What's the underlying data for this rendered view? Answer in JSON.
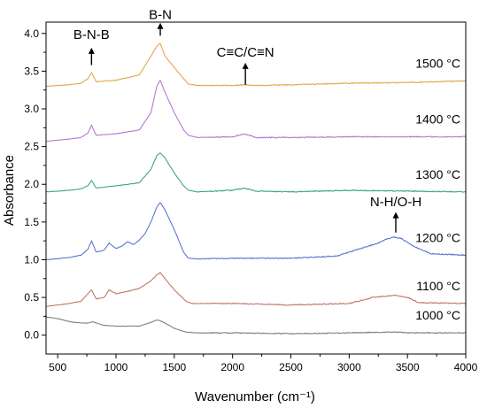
{
  "chart_data": {
    "type": "line",
    "title": "",
    "xlabel": "Wavenumber (cm⁻¹)",
    "ylabel": "Absorbance",
    "xlim": [
      400,
      4000
    ],
    "ylim": [
      -0.25,
      4.15
    ],
    "xticks": [
      500,
      1000,
      1500,
      2000,
      2500,
      3000,
      3500,
      4000
    ],
    "yticks": [
      0.0,
      0.5,
      1.0,
      1.5,
      2.0,
      2.5,
      3.0,
      3.5,
      4.0
    ],
    "grid": false,
    "legend": "none",
    "series": [
      {
        "name": "1000 °C",
        "color": "#808080",
        "x": [
          400,
          500,
          600,
          700,
          760,
          800,
          850,
          900,
          1000,
          1100,
          1200,
          1300,
          1350,
          1380,
          1420,
          1500,
          1600,
          1700,
          2000,
          2500,
          3000,
          3300,
          3400,
          3500,
          4000
        ],
        "y": [
          0.24,
          0.22,
          0.18,
          0.16,
          0.16,
          0.18,
          0.15,
          0.13,
          0.12,
          0.12,
          0.12,
          0.17,
          0.2,
          0.19,
          0.16,
          0.09,
          0.04,
          0.03,
          0.03,
          0.02,
          0.03,
          0.04,
          0.04,
          0.03,
          0.03
        ]
      },
      {
        "name": "1100 °C",
        "color": "#c0776a",
        "x": [
          400,
          600,
          700,
          760,
          790,
          830,
          900,
          940,
          1000,
          1100,
          1200,
          1300,
          1350,
          1380,
          1420,
          1500,
          1600,
          1650,
          2000,
          2500,
          3000,
          3200,
          3400,
          3500,
          3600,
          4000
        ],
        "y": [
          0.38,
          0.42,
          0.45,
          0.55,
          0.6,
          0.48,
          0.5,
          0.6,
          0.55,
          0.58,
          0.62,
          0.72,
          0.8,
          0.83,
          0.75,
          0.6,
          0.45,
          0.42,
          0.42,
          0.4,
          0.42,
          0.5,
          0.53,
          0.5,
          0.43,
          0.42
        ]
      },
      {
        "name": "1200 °C",
        "color": "#5a78d0",
        "x": [
          400,
          600,
          700,
          760,
          790,
          830,
          900,
          940,
          1000,
          1050,
          1100,
          1150,
          1200,
          1250,
          1300,
          1350,
          1380,
          1420,
          1500,
          1580,
          1620,
          1700,
          2000,
          2500,
          2900,
          3100,
          3250,
          3300,
          3380,
          3450,
          3550,
          3700,
          4000
        ],
        "y": [
          1.0,
          1.03,
          1.06,
          1.14,
          1.25,
          1.1,
          1.13,
          1.22,
          1.15,
          1.18,
          1.24,
          1.2,
          1.26,
          1.35,
          1.5,
          1.7,
          1.76,
          1.66,
          1.4,
          1.1,
          1.02,
          1.01,
          1.02,
          1.02,
          1.05,
          1.15,
          1.22,
          1.26,
          1.3,
          1.28,
          1.18,
          1.08,
          1.06
        ]
      },
      {
        "name": "1300 °C",
        "color": "#40a878",
        "x": [
          400,
          600,
          700,
          760,
          790,
          830,
          1000,
          1200,
          1300,
          1350,
          1380,
          1420,
          1500,
          1580,
          1620,
          1700,
          2000,
          2100,
          2200,
          2500,
          3000,
          3500,
          4000
        ],
        "y": [
          1.9,
          1.92,
          1.94,
          1.98,
          2.05,
          1.95,
          1.98,
          2.02,
          2.2,
          2.38,
          2.42,
          2.35,
          2.15,
          1.98,
          1.92,
          1.9,
          1.92,
          1.95,
          1.91,
          1.9,
          1.92,
          1.91,
          1.9
        ]
      },
      {
        "name": "1400 °C",
        "color": "#b877d4",
        "x": [
          400,
          600,
          700,
          760,
          790,
          830,
          1000,
          1200,
          1300,
          1350,
          1380,
          1420,
          1500,
          1580,
          1620,
          1700,
          2000,
          2100,
          2200,
          2500,
          3000,
          3500,
          4000
        ],
        "y": [
          2.57,
          2.6,
          2.62,
          2.68,
          2.78,
          2.65,
          2.67,
          2.72,
          2.95,
          3.3,
          3.38,
          3.22,
          2.95,
          2.72,
          2.65,
          2.62,
          2.63,
          2.67,
          2.62,
          2.62,
          2.63,
          2.63,
          2.63
        ]
      },
      {
        "name": "1500 °C",
        "color": "#e0a84a",
        "x": [
          400,
          600,
          700,
          760,
          790,
          830,
          1000,
          1200,
          1300,
          1350,
          1380,
          1420,
          1500,
          1580,
          1620,
          1700,
          2000,
          2100,
          2200,
          2500,
          3000,
          3500,
          4000
        ],
        "y": [
          3.3,
          3.32,
          3.34,
          3.4,
          3.48,
          3.36,
          3.38,
          3.45,
          3.7,
          3.83,
          3.87,
          3.7,
          3.55,
          3.4,
          3.33,
          3.31,
          3.31,
          3.32,
          3.31,
          3.32,
          3.34,
          3.35,
          3.37
        ]
      }
    ],
    "annotations": [
      {
        "text": "B-N-B",
        "x": 790,
        "arrow_from_y": 3.58,
        "arrow_to_y": 3.8,
        "label_y": 3.93
      },
      {
        "text": "B-N",
        "x": 1380,
        "arrow_from_y": 3.97,
        "arrow_to_y": 4.13,
        "label_y": 4.19
      },
      {
        "text": "C≡C/C≡N",
        "x": 2110,
        "arrow_from_y": 3.32,
        "arrow_to_y": 3.6,
        "label_y": 3.69
      },
      {
        "text": "N-H/O-H",
        "x": 3400,
        "arrow_from_y": 1.36,
        "arrow_to_y": 1.62,
        "label_y": 1.71
      }
    ]
  }
}
